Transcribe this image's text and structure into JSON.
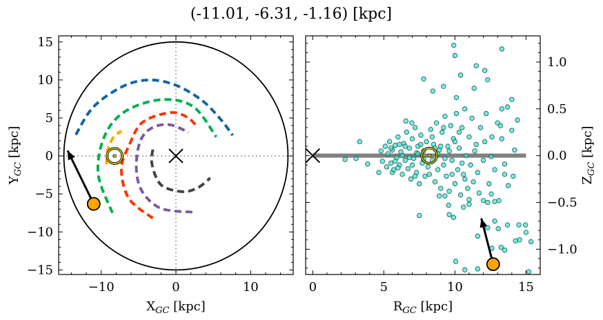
{
  "title": "(-11.01, -6.31, -1.16) [kpc]",
  "colors": {
    "scatter_fill": "#40e0d0",
    "scatter_edge": "#1a5a55",
    "object": "#ffa500",
    "disk_line": "#808080",
    "sun": "#c8c800"
  },
  "chart_data": [
    {
      "type": "line",
      "panel": "left",
      "xlabel": {
        "main": "X",
        "sub": "GC",
        "unit": " [kpc]"
      },
      "ylabel": {
        "main": "Y",
        "sub": "GC",
        "unit": " [kpc]"
      },
      "xlim": [
        -15.7,
        15.7
      ],
      "ylim": [
        -15.6,
        15.8
      ],
      "xticks": [
        -10,
        0,
        10
      ],
      "yticks": [
        15,
        10,
        5,
        0,
        -5,
        -10,
        -15
      ],
      "xtick_labels": [
        "−10",
        "0",
        "10"
      ],
      "ytick_labels": [
        "15",
        "10",
        "5",
        "0",
        "−5",
        "−10",
        "−15"
      ],
      "boundary_circle_radius": 15,
      "galactic_center": [
        0,
        0
      ],
      "sun": [
        -8.2,
        0
      ],
      "object": [
        -11.01,
        -6.31
      ],
      "arrow_to": [
        -14.5,
        0.7
      ],
      "arms": [
        {
          "color": "#1464a5",
          "points": [
            [
              -13.4,
              2.8
            ],
            [
              -11,
              6.5
            ],
            [
              -7,
              9.2
            ],
            [
              -3.5,
              10
            ],
            [
              0,
              9.3
            ],
            [
              3.5,
              7.3
            ],
            [
              6,
              4.8
            ],
            [
              7.6,
              2.7
            ]
          ]
        },
        {
          "color": "#00b050",
          "points": [
            [
              -8.5,
              -7.5
            ],
            [
              -10.4,
              -2.4
            ],
            [
              -9.6,
              2.5
            ],
            [
              -6.9,
              5.8
            ],
            [
              -2,
              7.4
            ],
            [
              2.3,
              6.5
            ],
            [
              5.4,
              2.5
            ]
          ]
        },
        {
          "color": "#ffa500",
          "points": [
            [
              -9.3,
              -1.1
            ],
            [
              -9.1,
              0.8
            ],
            [
              -8.4,
              2.4
            ],
            [
              -7.3,
              3.3
            ]
          ]
        },
        {
          "color": "#ff3300",
          "points": [
            [
              -3.1,
              -8.2
            ],
            [
              -6.3,
              -5.6
            ],
            [
              -7.3,
              -1.7
            ],
            [
              -6.3,
              1.3
            ],
            [
              -4.5,
              4.4
            ],
            [
              -0.8,
              5.7
            ],
            [
              1.5,
              5.1
            ],
            [
              2.8,
              3.9
            ]
          ]
        },
        {
          "color": "#7b5a9e",
          "points": [
            [
              2.2,
              -7.4
            ],
            [
              -2,
              -6.9
            ],
            [
              -4.5,
              -4.7
            ],
            [
              -5.3,
              -1.7
            ],
            [
              -4.8,
              1.9
            ],
            [
              -3.2,
              3.7
            ],
            [
              -0.8,
              4.1
            ],
            [
              1.7,
              3.1
            ]
          ]
        },
        {
          "color": "#444444",
          "points": [
            [
              -3.1,
              0.85
            ],
            [
              -3.2,
              -1.1
            ],
            [
              -2,
              -3.8
            ],
            [
              0.8,
              -4.7
            ],
            [
              2.9,
              -4.2
            ],
            [
              4.6,
              -2.9
            ]
          ]
        }
      ]
    },
    {
      "type": "scatter",
      "panel": "right",
      "xlabel": {
        "main": "R",
        "sub": "GC",
        "unit": " [kpc]"
      },
      "ylabel": {
        "main": "Z",
        "sub": "GC",
        "unit": " [kpc]"
      },
      "xlim": [
        -0.5,
        16.0
      ],
      "ylim": [
        -1.27,
        1.28
      ],
      "xticks": [
        0,
        5,
        10,
        15
      ],
      "yticks": [
        1.0,
        0.5,
        0.0,
        -0.5,
        -1.0
      ],
      "xtick_labels": [
        "0",
        "5",
        "10",
        "15"
      ],
      "ytick_labels": [
        "1.0",
        "0.5",
        "0.0",
        "−0.5",
        "−1.0"
      ],
      "disk_line": [
        [
          0,
          0
        ],
        [
          15,
          0
        ]
      ],
      "galactic_center": [
        0,
        0
      ],
      "sun": [
        8.2,
        0
      ],
      "object": [
        12.69,
        -1.16
      ],
      "arrow_to": [
        11.86,
        -0.67
      ],
      "points": [
        [
          9.92,
          1.18
        ],
        [
          10.0,
          1.07
        ],
        [
          13.3,
          1.14
        ],
        [
          11.5,
          0.96
        ],
        [
          12.1,
          0.91
        ],
        [
          7.8,
          0.82
        ],
        [
          10.4,
          0.86
        ],
        [
          12.3,
          0.81
        ],
        [
          8.45,
          0.69
        ],
        [
          9.2,
          0.74
        ],
        [
          11.35,
          0.72
        ],
        [
          10.1,
          0.62
        ],
        [
          14.0,
          0.6
        ],
        [
          6.55,
          0.37
        ],
        [
          6.97,
          0.35
        ],
        [
          3.3,
          0.15
        ],
        [
          2.27,
          -0.04
        ],
        [
          3.05,
          -0.03
        ],
        [
          3.86,
          -0.09
        ],
        [
          4.65,
          -0.18
        ],
        [
          5.6,
          -0.18
        ],
        [
          7.5,
          -0.64
        ],
        [
          9.6,
          -0.63
        ],
        [
          9.9,
          -0.66
        ],
        [
          9.3,
          -0.43
        ],
        [
          8.9,
          -0.43
        ],
        [
          10.6,
          -0.55
        ],
        [
          12.0,
          -0.48
        ],
        [
          12.8,
          -0.49
        ],
        [
          13.1,
          -0.48
        ],
        [
          14.2,
          0.06
        ],
        [
          14.4,
          0.38
        ],
        [
          14.0,
          0.27
        ],
        [
          14.1,
          -0.22
        ],
        [
          13.75,
          -0.32
        ],
        [
          12.8,
          -0.7
        ],
        [
          12.3,
          -0.77
        ],
        [
          13.05,
          -0.78
        ],
        [
          13.7,
          -0.74
        ],
        [
          14.5,
          -0.74
        ],
        [
          14.96,
          -0.74
        ],
        [
          15.0,
          -0.82
        ],
        [
          14.26,
          -0.91
        ],
        [
          14.55,
          -0.9
        ],
        [
          15.35,
          -0.92
        ],
        [
          11.6,
          -0.86
        ],
        [
          12.6,
          -0.99
        ],
        [
          13.25,
          -0.98
        ],
        [
          13.5,
          -1.01
        ],
        [
          10.05,
          -1.13
        ],
        [
          10.7,
          -1.22
        ],
        [
          11.6,
          -1.21
        ],
        [
          15.2,
          -1.24
        ],
        [
          13.3,
          0.5
        ],
        [
          13.7,
          0.52
        ],
        [
          13.2,
          0.32
        ],
        [
          13.3,
          0.18
        ],
        [
          12.55,
          -0.01
        ],
        [
          13.5,
          -0.09
        ],
        [
          13.5,
          -0.2
        ],
        [
          12.56,
          -0.41
        ],
        [
          12.3,
          -0.5
        ],
        [
          11.0,
          -0.47
        ],
        [
          11.0,
          -0.52
        ],
        [
          9.56,
          -0.53
        ],
        [
          4.8,
          0.05
        ],
        [
          4.9,
          -0.06
        ],
        [
          5.1,
          0.1
        ],
        [
          5.2,
          -0.12
        ],
        [
          5.3,
          0.02
        ],
        [
          5.4,
          0.15
        ],
        [
          5.5,
          -0.08
        ],
        [
          5.6,
          0.06
        ],
        [
          5.7,
          -0.15
        ],
        [
          5.8,
          0.11
        ],
        [
          5.9,
          -0.02
        ],
        [
          6.0,
          0.2
        ],
        [
          6.1,
          -0.1
        ],
        [
          6.2,
          0.04
        ],
        [
          6.3,
          -0.2
        ],
        [
          6.4,
          0.13
        ],
        [
          6.5,
          -0.05
        ],
        [
          6.6,
          0.25
        ],
        [
          6.7,
          -0.14
        ],
        [
          6.8,
          0.08
        ],
        [
          6.9,
          -0.25
        ],
        [
          7.0,
          0.18
        ],
        [
          7.1,
          -0.03
        ],
        [
          7.2,
          0.3
        ],
        [
          7.3,
          -0.18
        ],
        [
          7.4,
          0.1
        ],
        [
          7.5,
          -0.3
        ],
        [
          7.6,
          0.22
        ],
        [
          7.7,
          -0.08
        ],
        [
          7.8,
          0.05
        ],
        [
          7.9,
          -0.22
        ],
        [
          8.0,
          0.15
        ],
        [
          8.1,
          -0.12
        ],
        [
          8.3,
          0.28
        ],
        [
          8.4,
          -0.05
        ],
        [
          8.5,
          0.12
        ],
        [
          8.6,
          -0.28
        ],
        [
          8.7,
          0.35
        ],
        [
          8.8,
          -0.15
        ],
        [
          8.9,
          0.06
        ],
        [
          9.0,
          -0.35
        ],
        [
          9.1,
          0.25
        ],
        [
          9.2,
          -0.1
        ],
        [
          9.3,
          0.42
        ],
        [
          9.4,
          -0.22
        ],
        [
          9.5,
          0.1
        ],
        [
          9.6,
          -0.38
        ],
        [
          9.7,
          0.32
        ],
        [
          9.8,
          -0.05
        ],
        [
          9.9,
          0.18
        ],
        [
          10.0,
          -0.3
        ],
        [
          10.1,
          0.45
        ],
        [
          10.2,
          -0.15
        ],
        [
          10.3,
          0.08
        ],
        [
          10.4,
          -0.42
        ],
        [
          10.5,
          0.3
        ],
        [
          10.6,
          -0.2
        ],
        [
          10.7,
          0.5
        ],
        [
          10.8,
          0.0
        ],
        [
          10.9,
          -0.35
        ],
        [
          11.0,
          0.2
        ],
        [
          11.1,
          -0.1
        ],
        [
          11.2,
          0.4
        ],
        [
          11.3,
          -0.28
        ],
        [
          11.5,
          0.12
        ],
        [
          11.6,
          -0.18
        ],
        [
          11.8,
          0.3
        ],
        [
          12.0,
          -0.05
        ],
        [
          12.2,
          0.45
        ],
        [
          12.4,
          -0.3
        ],
        [
          12.6,
          0.2
        ],
        [
          12.8,
          -0.15
        ],
        [
          13.0,
          0.35
        ],
        [
          6.3,
          0.0
        ],
        [
          6.8,
          -0.02
        ],
        [
          7.3,
          0.03
        ],
        [
          7.8,
          -0.04
        ],
        [
          8.8,
          0.02
        ],
        [
          9.3,
          -0.03
        ],
        [
          5.8,
          -0.06
        ],
        [
          6.5,
          0.1
        ],
        [
          7.0,
          -0.1
        ],
        [
          7.6,
          0.12
        ],
        [
          8.4,
          0.2
        ],
        [
          9.0,
          0.1
        ],
        [
          9.6,
          0.05
        ],
        [
          10.0,
          0.15
        ],
        [
          10.5,
          -0.08
        ],
        [
          6.0,
          -0.13
        ],
        [
          5.5,
          0.08
        ],
        [
          7.2,
          -0.22
        ],
        [
          8.2,
          -0.2
        ],
        [
          9.8,
          -0.2
        ],
        [
          10.3,
          0.25
        ],
        [
          11.4,
          0.05
        ],
        [
          8.6,
          0.08
        ],
        [
          7.4,
          0.02
        ],
        [
          6.1,
          0.12
        ],
        [
          9.2,
          0.3
        ],
        [
          10.7,
          -0.25
        ],
        [
          11.7,
          -0.4
        ],
        [
          12.1,
          0.15
        ]
      ]
    }
  ]
}
